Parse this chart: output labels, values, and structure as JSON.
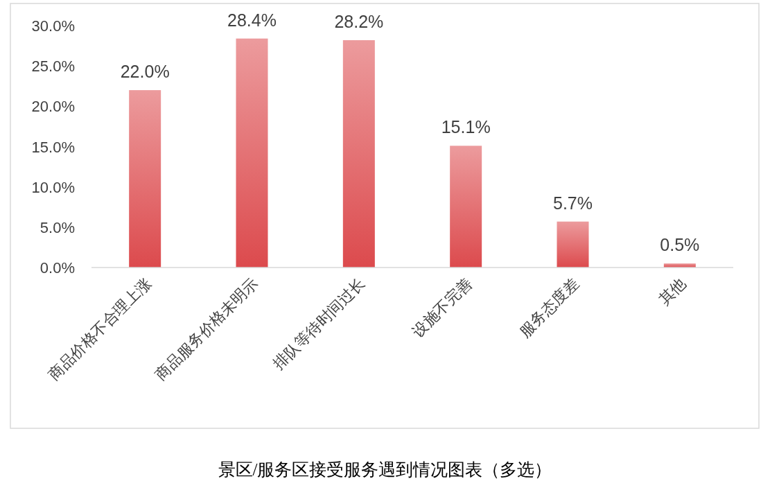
{
  "chart_data": {
    "type": "bar",
    "title": "景区/服务区接受服务遇到情况图表（多选）",
    "categories": [
      "商品价格不合理上涨",
      "商品服务价格未明示",
      "排队等待时间过长",
      "设施不完善",
      "服务态度差",
      "其他"
    ],
    "values": [
      22.0,
      28.4,
      28.2,
      15.1,
      5.7,
      0.5
    ],
    "value_labels": [
      "22.0%",
      "28.4%",
      "28.2%",
      "15.1%",
      "5.7%",
      "0.5%"
    ],
    "color": "#dc4a4d",
    "ylim": [
      0,
      30
    ],
    "yticks": [
      {
        "value": 0,
        "label": "0.0%"
      },
      {
        "value": 5,
        "label": "5.0%"
      },
      {
        "value": 10,
        "label": "10.0%"
      },
      {
        "value": 15,
        "label": "15.0%"
      },
      {
        "value": 20,
        "label": "20.0%"
      },
      {
        "value": 25,
        "label": "25.0%"
      },
      {
        "value": 30,
        "label": "30.0%"
      }
    ]
  }
}
